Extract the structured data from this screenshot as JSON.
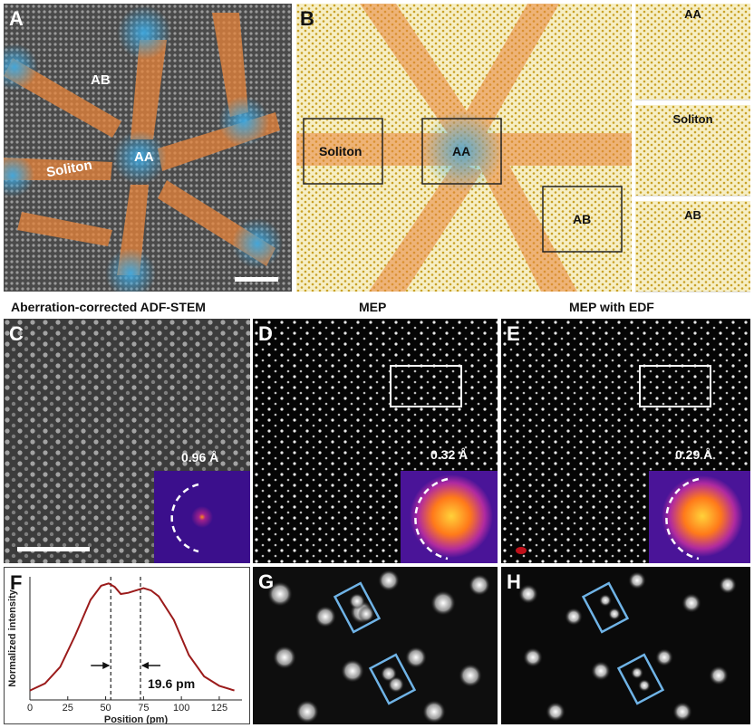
{
  "panels": {
    "A": {
      "label": "A",
      "ab": "AB",
      "aa": "AA",
      "soliton": "Soliton"
    },
    "B": {
      "label": "B",
      "soliton": "Soliton",
      "aa": "AA",
      "ab": "AB",
      "side_aa": "AA",
      "side_soliton": "Soliton",
      "side_ab": "AB"
    },
    "C": {
      "label": "C",
      "caption": "Aberration-corrected ADF-STEM",
      "resolution": "0.96 Å"
    },
    "D": {
      "label": "D",
      "caption": "MEP",
      "resolution": "0.32 Å"
    },
    "E": {
      "label": "E",
      "caption": "MEP with EDF",
      "resolution": "0.29 Å"
    },
    "F": {
      "label": "F",
      "annotation": "19.6 pm"
    },
    "G": {
      "label": "G"
    },
    "H": {
      "label": "H"
    }
  },
  "chart_data": {
    "type": "line",
    "xlabel": "Position (pm)",
    "ylabel": "Normalized intensity",
    "xlim": [
      0,
      140
    ],
    "xticks": [
      0,
      25,
      50,
      75,
      100,
      125
    ],
    "x": [
      0,
      10,
      20,
      30,
      40,
      47,
      52,
      56,
      60,
      65,
      70,
      75,
      80,
      85,
      95,
      105,
      115,
      125,
      135
    ],
    "y": [
      0.08,
      0.14,
      0.28,
      0.55,
      0.85,
      0.97,
      0.99,
      0.96,
      0.9,
      0.91,
      0.93,
      0.95,
      0.93,
      0.88,
      0.68,
      0.38,
      0.2,
      0.12,
      0.08
    ],
    "vlines": [
      53.4,
      73.0
    ],
    "grid": false,
    "line_color": "#9b1b1b"
  },
  "colors": {
    "orange": "#e8843a",
    "blue": "#3ea8e0",
    "box": "#6fb3e6"
  }
}
